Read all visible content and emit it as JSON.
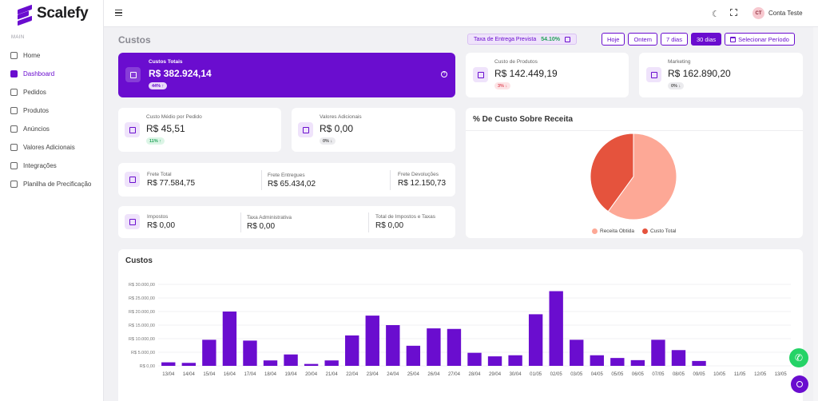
{
  "app": {
    "brand": "Scalefy"
  },
  "sidebar": {
    "section_label": "MAIN",
    "items": [
      {
        "label": "Home",
        "icon": "home-icon"
      },
      {
        "label": "Dashboard",
        "icon": "dashboard-icon",
        "active": true
      },
      {
        "label": "Pedidos",
        "icon": "orders-icon"
      },
      {
        "label": "Produtos",
        "icon": "products-icon"
      },
      {
        "label": "Anúncios",
        "icon": "ads-icon"
      },
      {
        "label": "Valores Adicionais",
        "icon": "database-icon"
      },
      {
        "label": "Integrações",
        "icon": "share-icon"
      },
      {
        "label": "Planilha de Precificação",
        "icon": "spreadsheet-icon"
      }
    ]
  },
  "header": {
    "user_initials": "CT",
    "user_name": "Conta Teste",
    "page_title": "Custos",
    "delivery_label": "Taxa de Entrega Prevista",
    "delivery_value": "54.10%",
    "filters": [
      "Hoje",
      "Ontem",
      "7 dias",
      "30 dias",
      "Selecionar Período"
    ],
    "active_filter": "30 dias"
  },
  "cards": {
    "total_costs": {
      "label": "Custos Totais",
      "value": "R$ 382.924,14",
      "badge": "44% ↑",
      "help": "?"
    },
    "product_cost": {
      "label": "Custo de Produtos",
      "value": "R$ 142.449,19",
      "badge": "3% ↓"
    },
    "marketing": {
      "label": "Marketing",
      "value": "R$ 162.890,20",
      "badge": "0% ↓"
    },
    "avg_order_cost": {
      "label": "Custo Médio por Pedido",
      "value": "R$ 45,51",
      "badge": "11% ↑"
    },
    "additional_values": {
      "label": "Valores Adicionais",
      "value": "R$ 0,00",
      "badge": "0% ↓"
    },
    "freight": {
      "total_label": "Frete Total",
      "total_value": "R$ 77.584,75",
      "delivered_label": "Frete Entregues",
      "delivered_value": "R$ 65.434,02",
      "returns_label": "Frete Devoluções",
      "returns_value": "R$ 12.150,73"
    },
    "taxes": {
      "taxes_label": "Impostos",
      "taxes_value": "R$ 0,00",
      "admin_label": "Taxa Administrativa",
      "admin_value": "R$ 0,00",
      "total_label": "Total de Impostos e Taxas",
      "total_value": "R$ 0,00"
    }
  },
  "pie_section": {
    "title": "% De Custo Sobre Receita"
  },
  "bar_section": {
    "title": "Custos"
  },
  "colors": {
    "accent": "#6a0dcf",
    "pie_revenue": "#fda896",
    "pie_cost": "#e5533d"
  },
  "chart_data": [
    {
      "type": "pie",
      "labels": [
        "Receita Obtida",
        "Custo Total"
      ],
      "values": [
        60,
        40
      ],
      "legend": "bottom"
    },
    {
      "type": "bar",
      "categories": [
        "13/04",
        "14/04",
        "15/04",
        "16/04",
        "17/04",
        "18/04",
        "19/04",
        "20/04",
        "21/04",
        "22/04",
        "23/04",
        "24/04",
        "25/04",
        "26/04",
        "27/04",
        "28/04",
        "29/04",
        "30/04",
        "01/05",
        "02/05",
        "03/05",
        "04/05",
        "05/05",
        "06/05",
        "07/05",
        "08/05",
        "09/05",
        "10/05",
        "11/05",
        "12/05",
        "13/05"
      ],
      "values": [
        1300,
        1100,
        9600,
        20000,
        9300,
        2000,
        4200,
        700,
        2000,
        11200,
        18500,
        15000,
        7400,
        13800,
        13600,
        4800,
        3500,
        3900,
        19000,
        27500,
        9600,
        3900,
        2900,
        2100,
        9600,
        5800,
        1800,
        0,
        0,
        0,
        0
      ],
      "yticks": [
        "R$ 0,00",
        "R$ 5.000,00",
        "R$ 10.000,00",
        "R$ 15.000,00",
        "R$ 20.000,00",
        "R$ 25.000,00",
        "R$ 30.000,00"
      ],
      "ylim": [
        0,
        30000
      ],
      "grid": true
    }
  ]
}
